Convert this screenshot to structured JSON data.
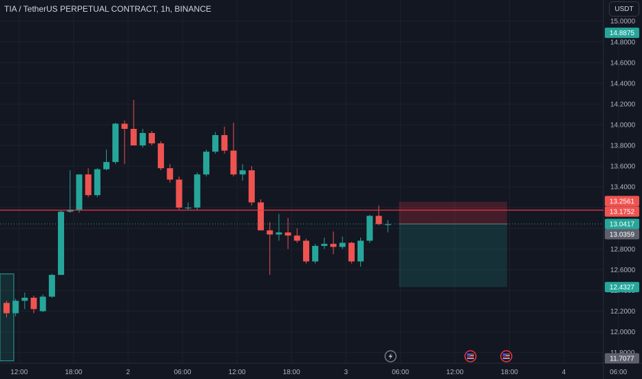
{
  "header": {
    "title": "TIA / TetherUS PERPETUAL CONTRACT, 1h, BINANCE",
    "currency_button": "USDT"
  },
  "colors": {
    "background": "#131722",
    "grid": "#1e222d",
    "up": "#26a69a",
    "down": "#ef5350",
    "resistance": "#f23645",
    "current_price": "#26a69a",
    "prev_close": "#5d606b",
    "stop_zone": "rgba(242,54,69,0.22)",
    "target_zone": "rgba(38,166,154,0.18)"
  },
  "chart_data": {
    "type": "candlestick",
    "symbol": "TIA / TetherUS PERPETUAL CONTRACT",
    "interval": "1h",
    "exchange": "BINANCE",
    "ylim": [
      11.68,
      15.05
    ],
    "y_ticks": [
      "15.0000",
      "14.8000",
      "14.6000",
      "14.4000",
      "14.2000",
      "14.0000",
      "13.8000",
      "13.6000",
      "13.4000",
      "13.2000",
      "13.0000",
      "12.8000",
      "12.6000",
      "12.4000",
      "12.2000",
      "12.0000",
      "11.8000"
    ],
    "y_tick_values": [
      15.0,
      14.8,
      14.6,
      14.4,
      14.2,
      14.0,
      13.8,
      13.6,
      13.4,
      13.2,
      13.0,
      12.8,
      12.6,
      12.4,
      12.2,
      12.0,
      11.8
    ],
    "x_ticks": [
      {
        "label": "12:00",
        "index": 1.5
      },
      {
        "label": "18:00",
        "index": 7.5
      },
      {
        "label": "2",
        "index": 13.5
      },
      {
        "label": "06:00",
        "index": 19.5
      },
      {
        "label": "12:00",
        "index": 25.5
      },
      {
        "label": "18:00",
        "index": 31.5
      },
      {
        "label": "3",
        "index": 37.5
      },
      {
        "label": "06:00",
        "index": 43.5
      },
      {
        "label": "12:00",
        "index": 49.5
      },
      {
        "label": "18:00",
        "index": 55.5
      },
      {
        "label": "4",
        "index": 61.5
      },
      {
        "label": "06:00",
        "index": 67.5
      }
    ],
    "candles": [
      [
        12.28,
        12.3,
        12.14,
        12.18
      ],
      [
        12.18,
        12.32,
        12.15,
        12.3
      ],
      [
        12.3,
        12.38,
        12.22,
        12.33
      ],
      [
        12.33,
        12.35,
        12.18,
        12.22
      ],
      [
        12.2,
        12.36,
        12.19,
        12.34
      ],
      [
        12.34,
        12.56,
        12.33,
        12.55
      ],
      [
        12.55,
        13.17,
        12.55,
        13.16
      ],
      [
        13.16,
        13.56,
        13.15,
        13.18
      ],
      [
        13.18,
        13.52,
        13.15,
        13.52
      ],
      [
        13.52,
        13.58,
        13.3,
        13.32
      ],
      [
        13.32,
        13.58,
        13.3,
        13.57
      ],
      [
        13.57,
        13.76,
        13.56,
        13.64
      ],
      [
        13.64,
        14.02,
        13.62,
        14.01
      ],
      [
        14.01,
        14.04,
        13.62,
        13.96
      ],
      [
        13.96,
        14.24,
        13.8,
        13.8
      ],
      [
        13.8,
        13.96,
        13.78,
        13.92
      ],
      [
        13.92,
        13.94,
        13.8,
        13.82
      ],
      [
        13.82,
        13.84,
        13.56,
        13.58
      ],
      [
        13.58,
        13.62,
        13.44,
        13.47
      ],
      [
        13.47,
        13.5,
        13.18,
        13.2
      ],
      [
        13.2,
        13.25,
        13.18,
        13.2
      ],
      [
        13.2,
        13.54,
        13.18,
        13.52
      ],
      [
        13.52,
        13.76,
        13.5,
        13.74
      ],
      [
        13.74,
        13.93,
        13.72,
        13.9
      ],
      [
        13.9,
        13.98,
        13.72,
        13.75
      ],
      [
        13.75,
        14.02,
        13.5,
        13.52
      ],
      [
        13.52,
        13.62,
        13.46,
        13.56
      ],
      [
        13.56,
        13.6,
        13.22,
        13.25
      ],
      [
        13.25,
        13.28,
        12.98,
        12.98
      ],
      [
        12.98,
        13.06,
        12.55,
        12.94
      ],
      [
        12.94,
        13.14,
        12.88,
        12.96
      ],
      [
        12.96,
        13.1,
        12.8,
        12.93
      ],
      [
        12.93,
        13.0,
        12.86,
        12.88
      ],
      [
        12.88,
        12.9,
        12.66,
        12.68
      ],
      [
        12.68,
        12.85,
        12.66,
        12.83
      ],
      [
        12.83,
        12.91,
        12.8,
        12.85
      ],
      [
        12.85,
        12.97,
        12.75,
        12.82
      ],
      [
        12.82,
        12.92,
        12.8,
        12.86
      ],
      [
        12.86,
        12.87,
        12.66,
        12.68
      ],
      [
        12.68,
        12.91,
        12.63,
        12.88
      ],
      [
        12.88,
        13.13,
        12.86,
        13.12
      ],
      [
        13.12,
        13.22,
        13.03,
        13.04
      ],
      [
        13.04,
        13.08,
        12.96,
        13.04
      ]
    ],
    "resistance_line": 13.1752,
    "current_price": 13.0417,
    "position": {
      "entry": 13.0417,
      "stop": 13.2561,
      "target": 12.4327
    },
    "price_labels": [
      {
        "label": "14.8875",
        "value": 14.8875,
        "kind": "up"
      },
      {
        "label": "13.2561",
        "value": 13.2561,
        "kind": "down"
      },
      {
        "label": "13.1752",
        "value": 13.1752,
        "kind": "down"
      },
      {
        "label": "13.0417",
        "value": 13.0417,
        "kind": "up"
      },
      {
        "label": "13.0359",
        "value": 13.0359,
        "kind": "neutral"
      },
      {
        "label": "12.4327",
        "value": 12.4327,
        "kind": "up"
      },
      {
        "label": "11.7077",
        "value": 11.7077,
        "kind": "neutral"
      }
    ],
    "left_box": {
      "top": 12.56,
      "bottom": 11.72
    }
  },
  "icons": [
    "lightning-event-icon",
    "us-flag-event-icon",
    "us-flag-event-icon"
  ]
}
